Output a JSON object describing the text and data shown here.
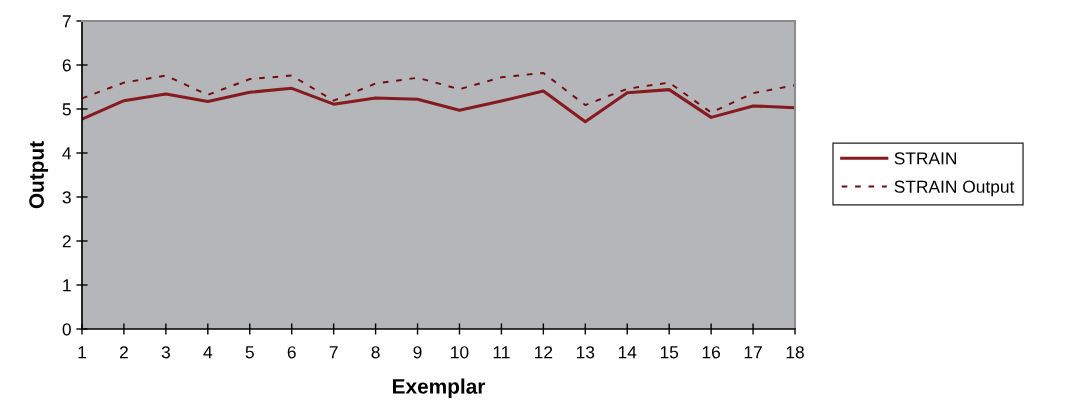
{
  "chart_data": {
    "type": "line",
    "xlabel": "Exemplar",
    "ylabel": "Output",
    "x": [
      1,
      2,
      3,
      4,
      5,
      6,
      7,
      8,
      9,
      10,
      11,
      12,
      13,
      14,
      15,
      16,
      17,
      18
    ],
    "xlim": [
      1,
      18
    ],
    "xticks": [
      1,
      2,
      3,
      4,
      5,
      6,
      7,
      8,
      9,
      10,
      11,
      12,
      13,
      14,
      15,
      16,
      17,
      18
    ],
    "ylim": [
      0,
      7
    ],
    "yticks": [
      0,
      1,
      2,
      3,
      4,
      5,
      6,
      7
    ],
    "series": [
      {
        "name": "STRAIN",
        "color": "#851a1f",
        "line_style": "solid",
        "values": [
          4.77,
          5.19,
          5.34,
          5.17,
          5.38,
          5.47,
          5.11,
          5.25,
          5.22,
          4.97,
          5.18,
          5.41,
          4.71,
          5.37,
          5.44,
          4.81,
          5.07,
          5.03
        ]
      },
      {
        "name": "STRAIN Output",
        "color": "#720c10",
        "line_style": "dashed",
        "values": [
          5.24,
          5.6,
          5.76,
          5.32,
          5.68,
          5.76,
          5.19,
          5.58,
          5.71,
          5.45,
          5.72,
          5.82,
          5.09,
          5.46,
          5.6,
          4.92,
          5.36,
          5.54
        ]
      }
    ],
    "grid": false,
    "legend": "right"
  }
}
